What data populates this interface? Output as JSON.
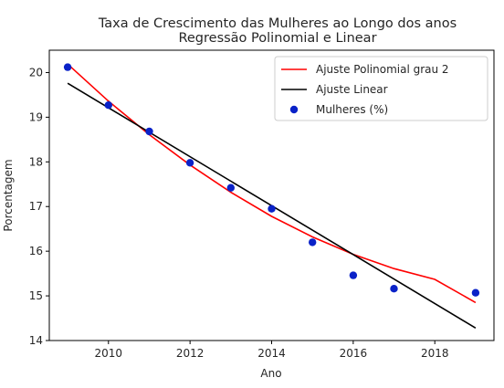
{
  "chart_data": {
    "type": "scatter",
    "title": "Taxa de Crescimento das Mulheres ao Longo dos anos",
    "subtitle": "Regressão Polinomial e Linear",
    "xlabel": "Ano",
    "ylabel": "Porcentagem",
    "xlim": [
      2008.55,
      2019.45
    ],
    "ylim": [
      14,
      20.5
    ],
    "xticks": [
      2010,
      2012,
      2014,
      2016,
      2018
    ],
    "yticks": [
      14,
      15,
      16,
      17,
      18,
      19,
      20
    ],
    "grid": false,
    "legend_position": "top-right",
    "series": [
      {
        "name": "Ajuste Polinomial grau 2",
        "kind": "line",
        "color": "#ff0000",
        "x": [
          2009,
          2010,
          2011,
          2012,
          2013,
          2014,
          2015,
          2016,
          2017,
          2018,
          2019
        ],
        "y": [
          20.19,
          19.36,
          18.61,
          17.93,
          17.32,
          16.78,
          16.32,
          15.93,
          15.61,
          15.37,
          14.85
        ]
      },
      {
        "name": "Ajuste Linear",
        "kind": "line",
        "color": "#000000",
        "x": [
          2009,
          2019
        ],
        "y": [
          19.76,
          14.28
        ]
      },
      {
        "name": "Mulheres (%)",
        "kind": "scatter",
        "color": "#0a22c8",
        "x": [
          2009,
          2010,
          2011,
          2012,
          2013,
          2014,
          2015,
          2016,
          2017,
          2019
        ],
        "y": [
          20.12,
          19.27,
          18.68,
          17.98,
          17.42,
          16.95,
          16.2,
          15.46,
          15.16,
          15.07
        ]
      }
    ]
  }
}
